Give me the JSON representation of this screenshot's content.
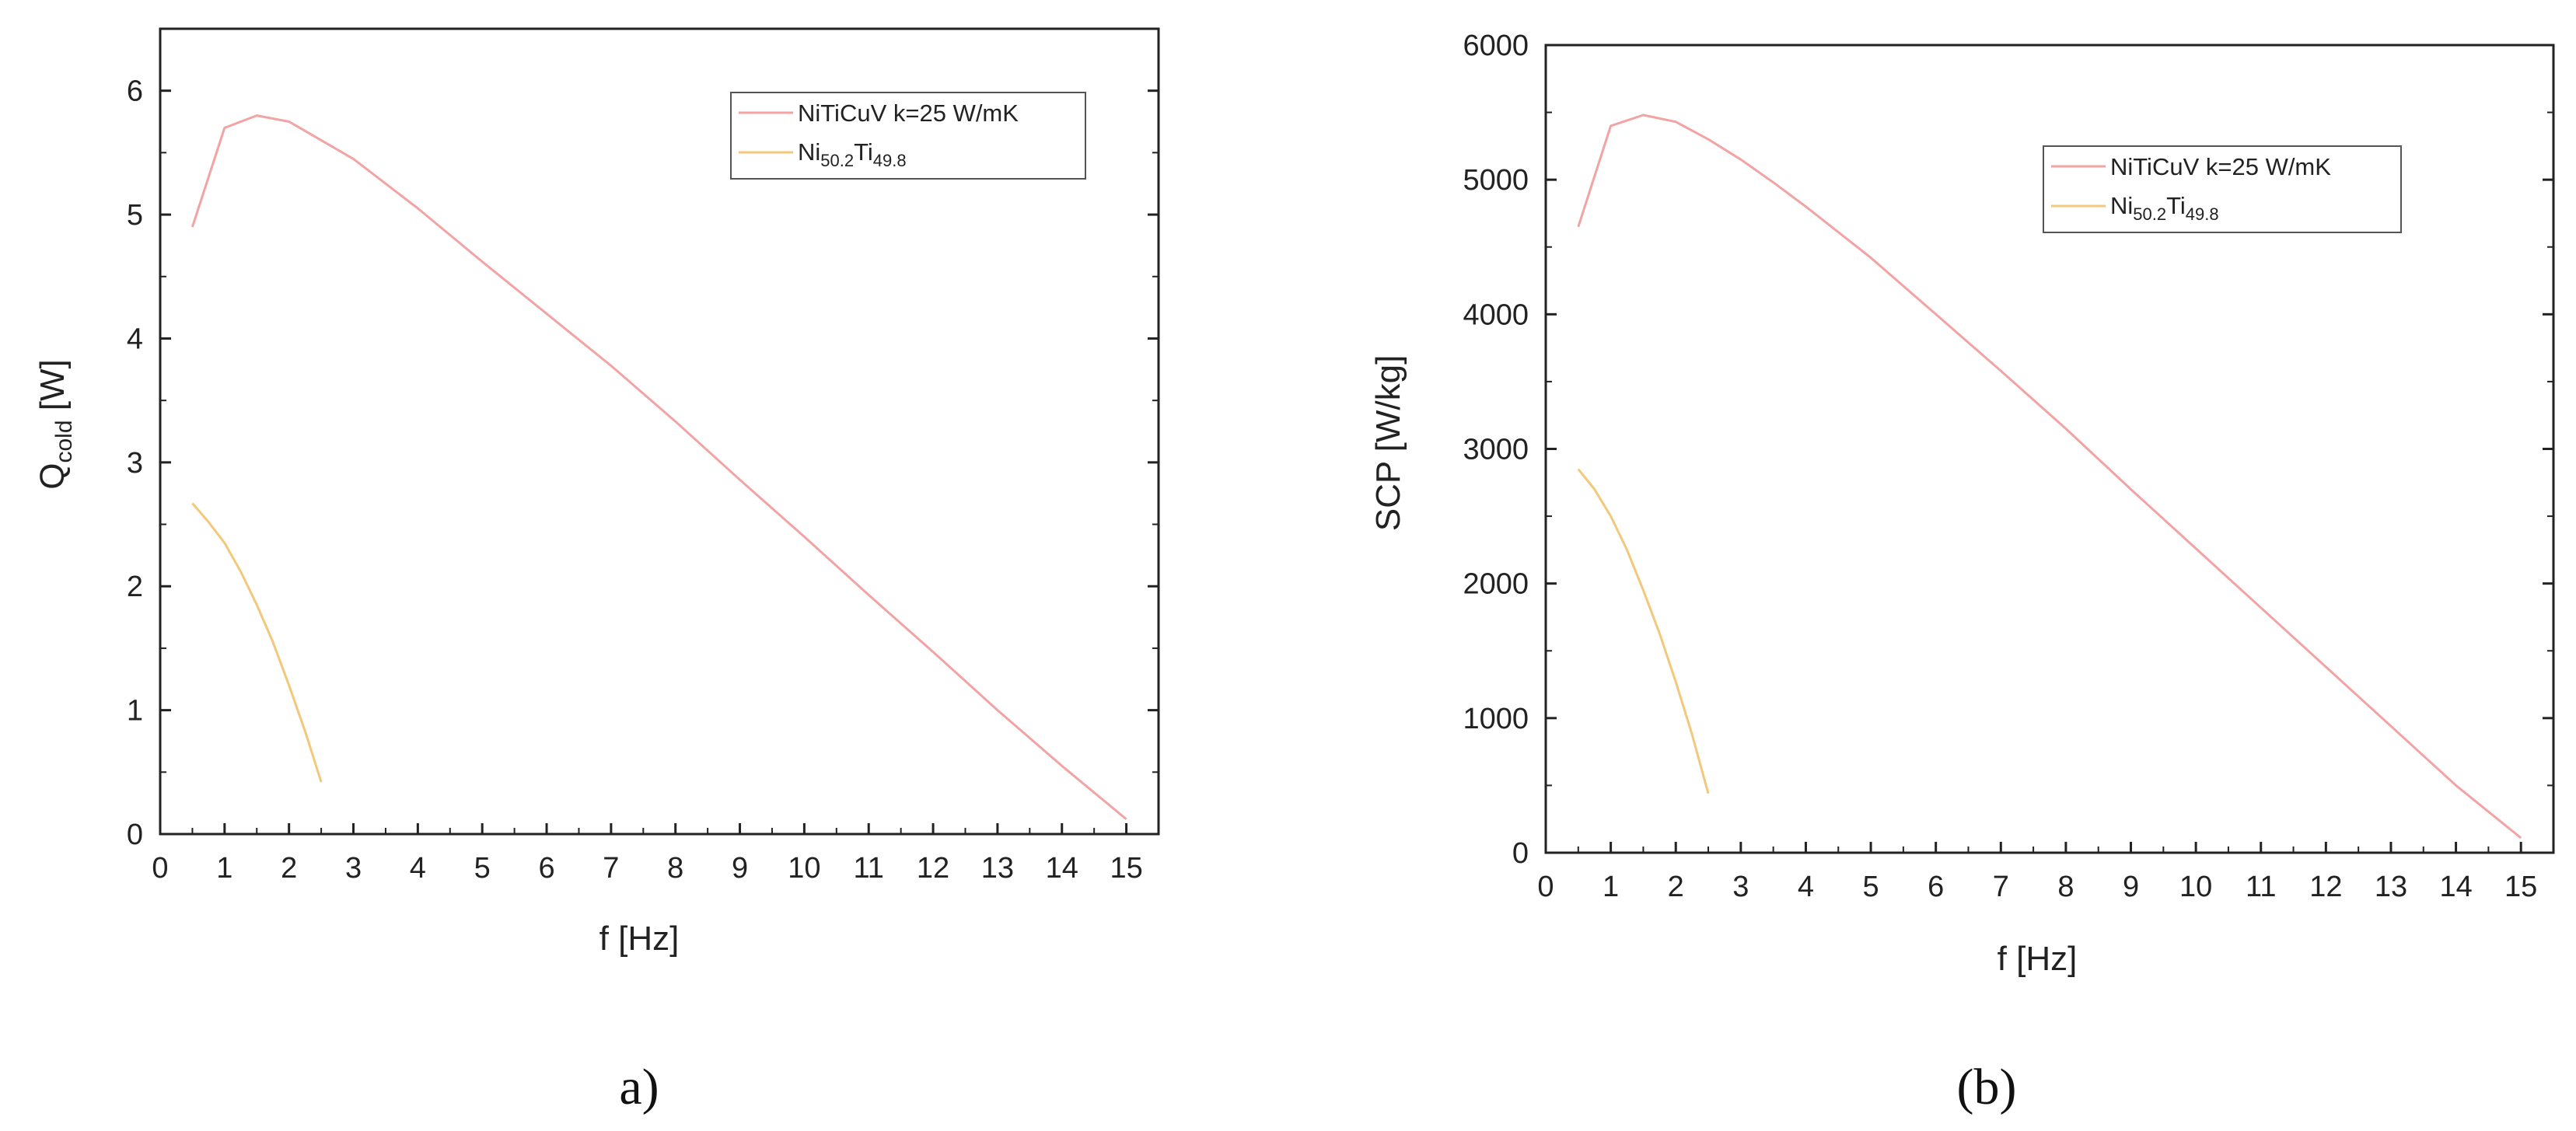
{
  "chart_data": [
    {
      "type": "line",
      "panel_label": "a)",
      "xlabel": "f [Hz]",
      "ylabel": "Q",
      "ylabel_sub": "cold",
      "ylabel_suffix": " [W]",
      "xlim": [
        0,
        15.5
      ],
      "ylim": [
        0,
        6.5
      ],
      "xticks": [
        0,
        1,
        2,
        3,
        4,
        5,
        6,
        7,
        8,
        9,
        10,
        11,
        12,
        13,
        14,
        15
      ],
      "yticks": [
        0,
        1,
        2,
        3,
        4,
        5,
        6
      ],
      "grid": false,
      "legend": "top-right",
      "series": [
        {
          "name": "NiTiCuV k=25 W/mK",
          "color": "#f2a3a3",
          "x": [
            0.5,
            1.0,
            1.5,
            2.0,
            2.5,
            3.0,
            3.5,
            4.0,
            5.0,
            6.0,
            7.0,
            8.0,
            9.0,
            10.0,
            11.0,
            12.0,
            13.0,
            14.0,
            15.0
          ],
          "y": [
            4.9,
            5.7,
            5.8,
            5.75,
            5.6,
            5.45,
            5.25,
            5.05,
            4.62,
            4.2,
            3.78,
            3.33,
            2.86,
            2.4,
            1.93,
            1.47,
            1.0,
            0.55,
            0.12
          ]
        },
        {
          "name_main": "Ni",
          "name_sub1": "50.2",
          "name_mid": "Ti",
          "name_sub2": "49.8",
          "color": "#f3c87a",
          "x": [
            0.5,
            0.75,
            1.0,
            1.25,
            1.5,
            1.75,
            2.0,
            2.25,
            2.5
          ],
          "y": [
            2.67,
            2.52,
            2.35,
            2.12,
            1.85,
            1.55,
            1.2,
            0.83,
            0.42
          ]
        }
      ]
    },
    {
      "type": "line",
      "panel_label": "(b)",
      "xlabel": "f [Hz]",
      "ylabel": "SCP [W/kg]",
      "xlim": [
        0,
        15.5
      ],
      "ylim": [
        0,
        6000
      ],
      "xticks": [
        0,
        1,
        2,
        3,
        4,
        5,
        6,
        7,
        8,
        9,
        10,
        11,
        12,
        13,
        14,
        15
      ],
      "yticks": [
        0,
        1000,
        2000,
        3000,
        4000,
        5000,
        6000
      ],
      "grid": false,
      "legend": "top-right",
      "series": [
        {
          "name": "NiTiCuV k=25 W/mK",
          "color": "#f2a3a3",
          "x": [
            0.5,
            1.0,
            1.5,
            2.0,
            2.5,
            3.0,
            3.5,
            4.0,
            5.0,
            6.0,
            7.0,
            8.0,
            9.0,
            10.0,
            11.0,
            12.0,
            13.0,
            14.0,
            15.0
          ],
          "y": [
            4650,
            5400,
            5480,
            5430,
            5300,
            5150,
            4980,
            4800,
            4420,
            4000,
            3580,
            3150,
            2700,
            2260,
            1820,
            1380,
            940,
            500,
            110
          ]
        },
        {
          "name_main": "Ni",
          "name_sub1": "50.2",
          "name_mid": "Ti",
          "name_sub2": "49.8",
          "color": "#f3c87a",
          "x": [
            0.5,
            0.75,
            1.0,
            1.25,
            1.5,
            1.75,
            2.0,
            2.25,
            2.5
          ],
          "y": [
            2850,
            2700,
            2500,
            2250,
            1950,
            1630,
            1270,
            880,
            440
          ]
        }
      ]
    }
  ]
}
